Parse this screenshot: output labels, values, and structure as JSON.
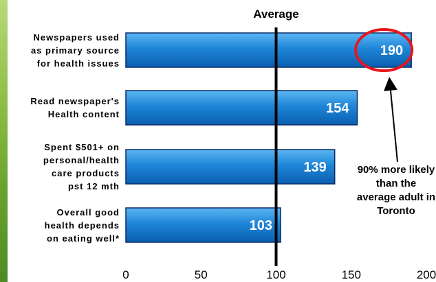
{
  "chart_data": {
    "type": "bar",
    "orientation": "horizontal",
    "title": "",
    "reference_label": "Average",
    "reference_value": 100,
    "categories": [
      "Newspapers used as primary source for health issues",
      "Read newspaper's Health content",
      "Spent $501+ on personal/health care products pst 12 mth",
      "Overall good health depends on eating well*"
    ],
    "category_lines": [
      [
        "Newspapers used",
        "as primary source",
        "for health issues"
      ],
      [
        "Read newspaper's",
        "Health content"
      ],
      [
        "Spent $501+ on",
        "personal/health",
        "care products",
        "pst 12 mth"
      ],
      [
        "Overall good",
        "health depends",
        "on eating well*"
      ]
    ],
    "values": [
      190,
      154,
      139,
      103
    ],
    "data_labels": [
      "190",
      "154",
      "139",
      "103"
    ],
    "xlim": [
      0,
      200
    ],
    "x_ticks": [
      "0",
      "50",
      "100",
      "150",
      "200"
    ],
    "xlabel": "",
    "ylabel": "",
    "grid": false,
    "legend": "none",
    "highlight_index": 0,
    "annotation": "90% more likely than the average adult in Toronto",
    "colors": {
      "bar": "#1f86d8",
      "bar_light": "#5cb6f2",
      "bar_dark": "#0a5fb0",
      "bar_border": "#0a2b66",
      "highlight_circle": "#e8141b",
      "reference_line": "#000000",
      "left_strip": "#7ab23a"
    }
  }
}
